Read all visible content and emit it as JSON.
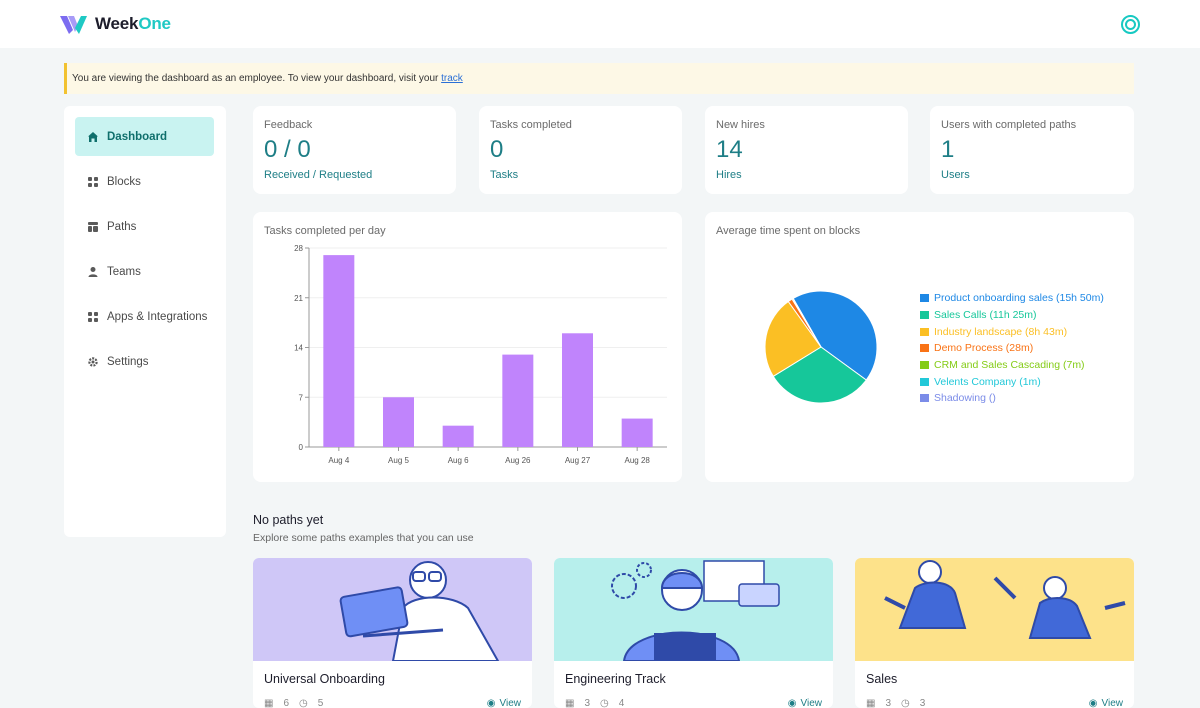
{
  "brand": {
    "name_main": "Week",
    "name_accent": "One"
  },
  "banner": {
    "text": "You are viewing the dashboard as an employee. To view your dashboard, visit your ",
    "link": "track"
  },
  "sidebar": {
    "items": [
      {
        "label": "Dashboard",
        "icon": "home-icon",
        "active": true
      },
      {
        "label": "Blocks",
        "icon": "blocks-icon"
      },
      {
        "label": "Paths",
        "icon": "paths-icon"
      },
      {
        "label": "Teams",
        "icon": "teams-icon"
      },
      {
        "label": "Apps & Integrations",
        "icon": "apps-icon"
      },
      {
        "label": "Settings",
        "icon": "gear-icon"
      }
    ]
  },
  "stats": [
    {
      "label": "Feedback",
      "value": "0 / 0",
      "sub": "Received / Requested"
    },
    {
      "label": "Tasks completed",
      "value": "0",
      "sub": "Tasks"
    },
    {
      "label": "New hires",
      "value": "14",
      "sub": "Hires"
    },
    {
      "label": "Users with completed paths",
      "value": "1",
      "sub": "Users"
    }
  ],
  "bar_chart_card": {
    "title": "Tasks completed per day"
  },
  "pie_chart_card": {
    "title": "Average time spent on blocks"
  },
  "chart_data": [
    {
      "type": "bar",
      "title": "Tasks completed per day",
      "categories": [
        "Aug 4",
        "Aug 5",
        "Aug 6",
        "Aug 26",
        "Aug 27",
        "Aug 28"
      ],
      "values": [
        27,
        7,
        3,
        13,
        16,
        4
      ],
      "ylim": [
        0,
        28
      ],
      "yticks": [
        0,
        7,
        14,
        21,
        28
      ],
      "color": "#c084fc",
      "grid": true
    },
    {
      "type": "pie",
      "title": "Average time spent on blocks",
      "legend_position": "right",
      "slices": [
        {
          "label": "Product onboarding sales (15h 50m)",
          "minutes": 950,
          "color": "#1e88e5"
        },
        {
          "label": "Sales Calls (11h 25m)",
          "minutes": 685,
          "color": "#16c79a"
        },
        {
          "label": "Industry landscape (8h 43m)",
          "minutes": 523,
          "color": "#fbbf24"
        },
        {
          "label": "Demo Process (28m)",
          "minutes": 28,
          "color": "#f97316"
        },
        {
          "label": "CRM and Sales Cascading (7m)",
          "minutes": 7,
          "color": "#84cc16"
        },
        {
          "label": "Velents Company (1m)",
          "minutes": 1,
          "color": "#22c8d8"
        },
        {
          "label": "Shadowing ()",
          "minutes": 0,
          "color": "#7b8ce8"
        }
      ]
    }
  ],
  "paths_section": {
    "title": "No paths yet",
    "subtitle": "Explore some paths examples that you can use"
  },
  "paths": [
    {
      "title": "Universal Onboarding",
      "members": "6",
      "duration": "5",
      "view": "View",
      "bg": "#cfc7f7"
    },
    {
      "title": "Engineering Track",
      "members": "3",
      "duration": "4",
      "view": "View",
      "bg": "#b7efec"
    },
    {
      "title": "Sales",
      "members": "3",
      "duration": "3",
      "view": "View",
      "bg": "#fde28a"
    }
  ]
}
